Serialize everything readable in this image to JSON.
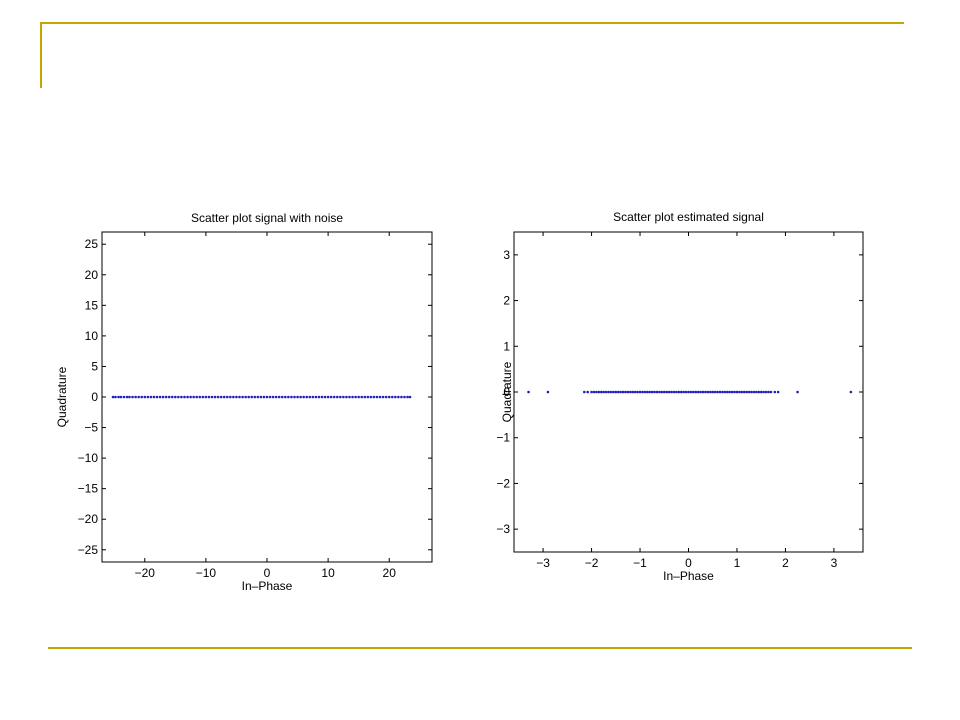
{
  "colors": {
    "accent_rule": "#c8a400",
    "marker": "#1f1fbf",
    "axes": "#000000"
  },
  "chart_data": [
    {
      "type": "scatter",
      "title": "Scatter plot signal with noise",
      "xlabel": "In–Phase",
      "ylabel": "Quadrature",
      "xlim": [
        -27,
        27
      ],
      "ylim": [
        -27,
        27
      ],
      "xticks": [
        -20,
        -10,
        0,
        10,
        20
      ],
      "yticks": [
        -25,
        -20,
        -15,
        -10,
        -5,
        0,
        5,
        10,
        15,
        20,
        25
      ],
      "xtick_labels": [
        "−20",
        "−10",
        "0",
        "10",
        "20"
      ],
      "ytick_labels": [
        "−25",
        "−20",
        "−15",
        "−10",
        "−5",
        "0",
        "5",
        "10",
        "15",
        "20",
        "25"
      ],
      "points": {
        "y": 0,
        "x": [
          -25.2,
          -24.8,
          -24.3,
          -23.9,
          -23.4,
          -22.9,
          -22.5,
          -22.0,
          -21.5,
          -21.0,
          -20.5,
          -20.0,
          -19.5,
          -19.0,
          -18.5,
          -18.0,
          -17.5,
          -17.0,
          -16.5,
          -16.0,
          -15.5,
          -15.0,
          -14.5,
          -14.0,
          -13.5,
          -13.0,
          -12.5,
          -12.0,
          -11.5,
          -11.0,
          -10.5,
          -10.0,
          -9.5,
          -9.0,
          -8.5,
          -8.0,
          -7.5,
          -7.0,
          -6.5,
          -6.0,
          -5.5,
          -5.0,
          -4.5,
          -4.0,
          -3.5,
          -3.0,
          -2.5,
          -2.0,
          -1.5,
          -1.0,
          -0.5,
          0.0,
          0.5,
          1.0,
          1.5,
          2.0,
          2.5,
          3.0,
          3.5,
          4.0,
          4.5,
          5.0,
          5.5,
          6.0,
          6.5,
          7.0,
          7.5,
          8.0,
          8.5,
          9.0,
          9.5,
          10.0,
          10.5,
          11.0,
          11.5,
          12.0,
          12.5,
          13.0,
          13.5,
          14.0,
          14.5,
          15.0,
          15.5,
          16.0,
          16.5,
          17.0,
          17.5,
          18.0,
          18.5,
          19.0,
          19.5,
          20.0,
          20.5,
          21.0,
          21.5,
          22.0,
          22.5,
          23.0,
          23.4
        ]
      },
      "grid": false
    },
    {
      "type": "scatter",
      "title": "Scatter plot estimated signal",
      "xlabel": "In–Phase",
      "ylabel": "Quadrature",
      "xlim": [
        -3.6,
        3.6
      ],
      "ylim": [
        -3.5,
        3.5
      ],
      "xticks": [
        -3,
        -2,
        -1,
        0,
        1,
        2,
        3
      ],
      "yticks": [
        -3,
        -2,
        -1,
        0,
        1,
        2,
        3
      ],
      "xtick_labels": [
        "−3",
        "−2",
        "−1",
        "0",
        "1",
        "2",
        "3"
      ],
      "ytick_labels": [
        "−3",
        "−2",
        "−1",
        "0",
        "1",
        "2",
        "3"
      ],
      "points": {
        "y": 0,
        "x": [
          -3.3,
          -2.9,
          -2.15,
          -2.08,
          -2.0,
          -1.95,
          -1.9,
          -1.85,
          -1.8,
          -1.75,
          -1.7,
          -1.65,
          -1.6,
          -1.55,
          -1.5,
          -1.45,
          -1.4,
          -1.35,
          -1.3,
          -1.25,
          -1.2,
          -1.15,
          -1.1,
          -1.05,
          -1.0,
          -0.95,
          -0.9,
          -0.85,
          -0.8,
          -0.75,
          -0.7,
          -0.65,
          -0.6,
          -0.55,
          -0.5,
          -0.45,
          -0.4,
          -0.35,
          -0.3,
          -0.25,
          -0.2,
          -0.15,
          -0.1,
          -0.05,
          0.0,
          0.05,
          0.1,
          0.15,
          0.2,
          0.25,
          0.3,
          0.35,
          0.4,
          0.45,
          0.5,
          0.55,
          0.6,
          0.65,
          0.7,
          0.75,
          0.8,
          0.85,
          0.9,
          0.95,
          1.0,
          1.05,
          1.1,
          1.15,
          1.2,
          1.25,
          1.3,
          1.35,
          1.4,
          1.45,
          1.5,
          1.55,
          1.6,
          1.65,
          1.7,
          1.78,
          1.85,
          2.25,
          3.35
        ]
      },
      "grid": false
    }
  ]
}
